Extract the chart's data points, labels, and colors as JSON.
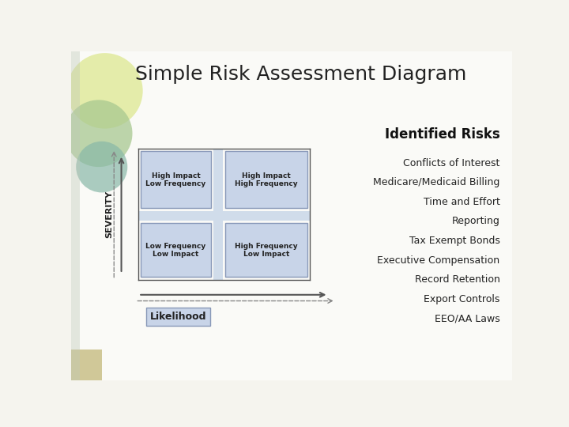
{
  "title": "Simple Risk Assessment Diagram",
  "title_fontsize": 18,
  "background_color": "#f5f4ee",
  "slide_color": "#fafaf5",
  "identified_risks_label": "Identified Risks",
  "risks": [
    "Conflicts of Interest",
    "Medicare/Medicaid Billing",
    "Time and Effort",
    "Reporting",
    "Tax Exempt Bonds",
    "Executive Compensation",
    "Record Retention",
    "Export Controls",
    "EEO/AA Laws"
  ],
  "box_facecolor": "#c8d4e8",
  "box_edgecolor": "#8898b8",
  "cross_color": "#d0dcea",
  "likelihood_label": "Likelihood",
  "severity_label": "SEVERITY",
  "decor_circle1_color": "#c8d890",
  "decor_circle2_color": "#dde890",
  "decor_circle3_color": "#a8c8a0",
  "decor_teal_color": "#90b8a8",
  "bottom_rect_color": "#d0c898"
}
